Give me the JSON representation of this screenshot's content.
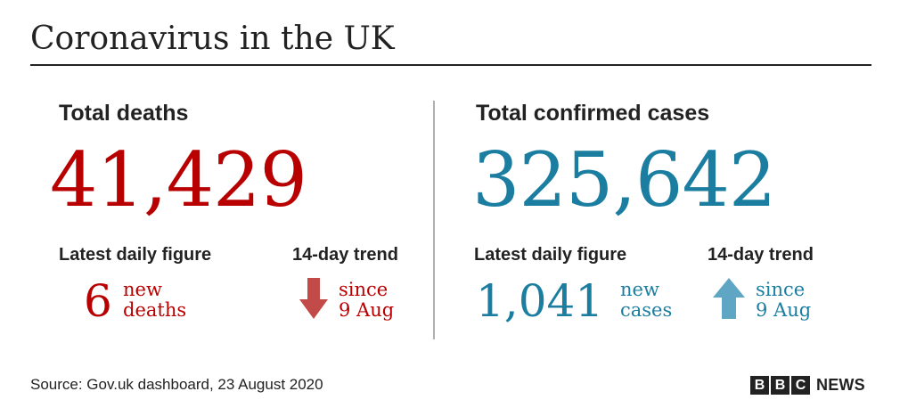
{
  "title": "Coronavirus in the UK",
  "colors": {
    "deaths": "#b80000",
    "deaths_arrow": "#c24a48",
    "cases": "#1b7ea1",
    "cases_arrow": "#5fa6c4",
    "text": "#222222",
    "divider": "#b0b0b0"
  },
  "deaths": {
    "heading": "Total deaths",
    "total": "41,429",
    "daily_label": "Latest daily figure",
    "daily_value": "6",
    "daily_unit_line1": "new",
    "daily_unit_line2": "deaths",
    "trend_label": "14-day trend",
    "trend_direction": "down",
    "trend_icon": "arrow-down-icon",
    "trend_line1": "since",
    "trend_line2": "9 Aug"
  },
  "cases": {
    "heading": "Total confirmed cases",
    "total": "325,642",
    "daily_label": "Latest daily figure",
    "daily_value": "1,041",
    "daily_unit_line1": "new",
    "daily_unit_line2": "cases",
    "trend_label": "14-day trend",
    "trend_direction": "up",
    "trend_icon": "arrow-up-icon",
    "trend_line1": "since",
    "trend_line2": "9 Aug"
  },
  "footer": {
    "source": "Source: Gov.uk dashboard, 23 August 2020",
    "logo_letters": [
      "B",
      "B",
      "C"
    ],
    "logo_word": "NEWS"
  }
}
